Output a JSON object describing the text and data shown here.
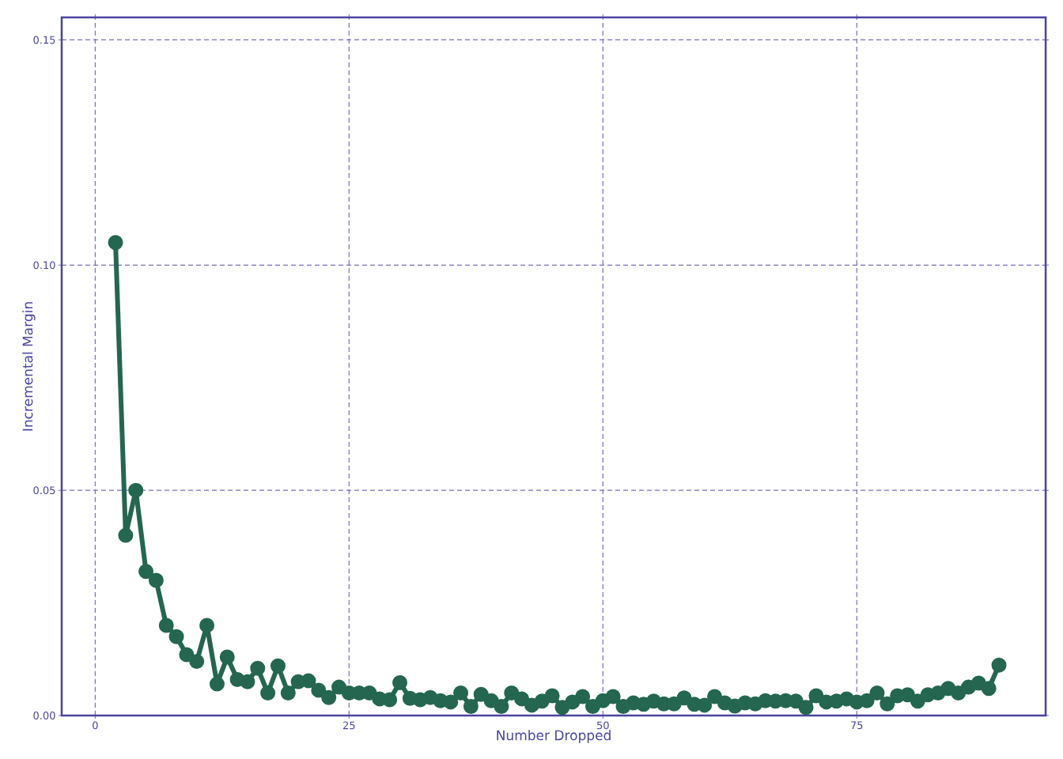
{
  "chart_data": {
    "type": "line",
    "xlabel": "Number Dropped",
    "ylabel": "Incremental Margin",
    "x": [
      2,
      3,
      4,
      5,
      6,
      7,
      8,
      9,
      10,
      11,
      12,
      13,
      14,
      15,
      16,
      17,
      18,
      19,
      20,
      21,
      22,
      23,
      24,
      25,
      26,
      27,
      28,
      29,
      30,
      31,
      32,
      33,
      34,
      35,
      36,
      37,
      38,
      39,
      40,
      41,
      42,
      43,
      44,
      45,
      46,
      47,
      48,
      49,
      50,
      51,
      52,
      53,
      54,
      55,
      56,
      57,
      58,
      59,
      60,
      61,
      62,
      63,
      64,
      65,
      66,
      67,
      68,
      69,
      70,
      71,
      72,
      73,
      74,
      75,
      76,
      77,
      78,
      79,
      80,
      81,
      82,
      83,
      84,
      85,
      86,
      87,
      88,
      89
    ],
    "series": [
      {
        "color": "#246650",
        "values": [
          0.105,
          0.04,
          0.05,
          0.032,
          0.03,
          0.02,
          0.0175,
          0.0135,
          0.012,
          0.02,
          0.007,
          0.013,
          0.008,
          0.0075,
          0.0105,
          0.005,
          0.011,
          0.005,
          0.0075,
          0.0077,
          0.0056,
          0.004,
          0.0063,
          0.005,
          0.005,
          0.005,
          0.0037,
          0.0035,
          0.0073,
          0.0038,
          0.0035,
          0.004,
          0.0033,
          0.003,
          0.005,
          0.002,
          0.0047,
          0.0033,
          0.002,
          0.005,
          0.0037,
          0.0023,
          0.0032,
          0.0044,
          0.0018,
          0.003,
          0.0042,
          0.002,
          0.0033,
          0.0042,
          0.002,
          0.0028,
          0.0025,
          0.0032,
          0.0026,
          0.0026,
          0.0039,
          0.0025,
          0.0023,
          0.0042,
          0.0028,
          0.0021,
          0.0028,
          0.0026,
          0.0033,
          0.0032,
          0.0033,
          0.0032,
          0.0018,
          0.0044,
          0.003,
          0.0032,
          0.0037,
          0.003,
          0.0033,
          0.005,
          0.0026,
          0.0044,
          0.0046,
          0.0032,
          0.0046,
          0.005,
          0.006,
          0.005,
          0.0063,
          0.0072,
          0.006,
          0.0112
        ]
      }
    ],
    "xlim": [
      -3.3,
      93.6
    ],
    "ylim": [
      0,
      0.155
    ],
    "xticks": [
      0,
      25,
      50,
      75
    ],
    "yticks": [
      {
        "value": 0,
        "label": "0.00"
      },
      {
        "value": 0.05,
        "label": "0.05"
      },
      {
        "value": 0.1,
        "label": "0.10"
      },
      {
        "value": 0.15,
        "label": "0.15"
      }
    ],
    "grid": true,
    "marker": "circle",
    "line_style": "solid"
  }
}
